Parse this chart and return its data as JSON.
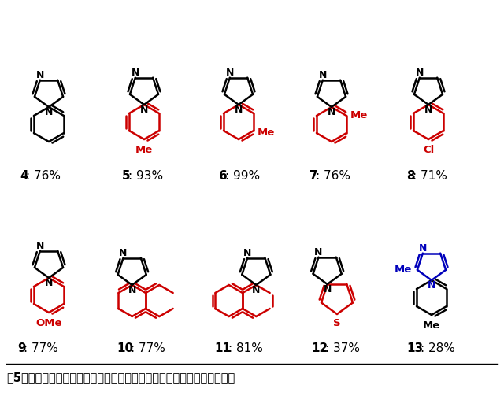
{
  "title": "図5　銅－ジルコニア固溶体触媒を用いて合成できるイミダゾール誤導体",
  "black": "#000000",
  "red": "#cc0000",
  "blue": "#0000bb",
  "bg": "#ffffff",
  "compounds": [
    {
      "num": "4",
      "yield": "76%"
    },
    {
      "num": "5",
      "yield": "93%"
    },
    {
      "num": "6",
      "yield": "99%"
    },
    {
      "num": "7",
      "yield": "76%"
    },
    {
      "num": "8",
      "yield": "71%"
    },
    {
      "num": "9",
      "yield": "77%"
    },
    {
      "num": "10",
      "yield": "77%"
    },
    {
      "num": "11",
      "yield": "81%"
    },
    {
      "num": "12",
      "yield": "37%"
    },
    {
      "num": "13",
      "yield": "28%"
    }
  ]
}
